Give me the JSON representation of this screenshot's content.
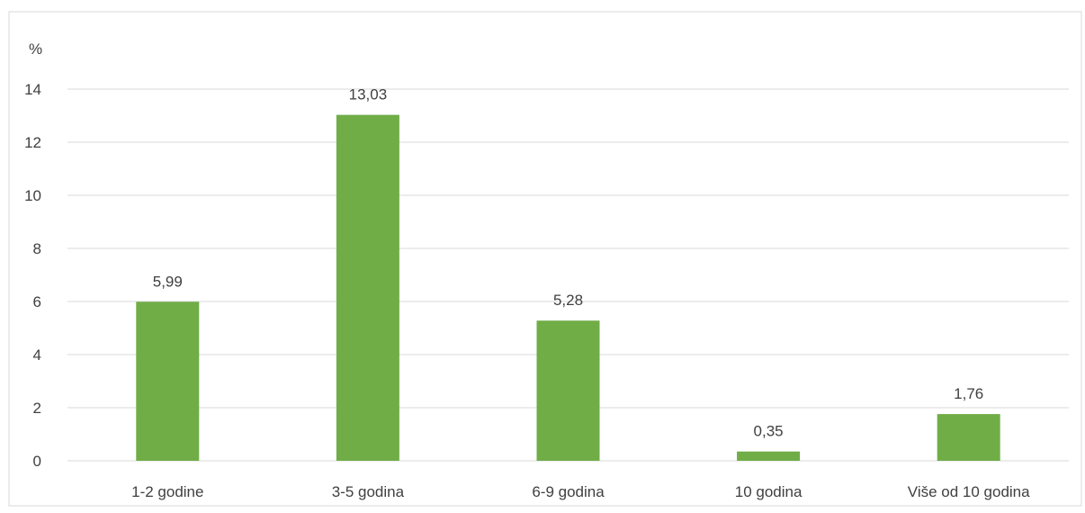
{
  "chart_data": {
    "type": "bar",
    "unit_label": "%",
    "categories": [
      "1-2 godine",
      "3-5 godina",
      "6-9 godina",
      "10 godina",
      "Više od 10 godina"
    ],
    "values": [
      5.99,
      13.03,
      5.28,
      0.35,
      1.76
    ],
    "data_labels": [
      "5,99",
      "13,03",
      "5,28",
      "0,35",
      "1,76"
    ],
    "yticks": [
      0,
      2,
      4,
      6,
      8,
      10,
      12,
      14
    ],
    "ylim": [
      0,
      14
    ],
    "grid": true,
    "legend": "none",
    "bar_color": "#70ad47",
    "grid_color": "#d9d9d9",
    "text_color": "#404040"
  }
}
